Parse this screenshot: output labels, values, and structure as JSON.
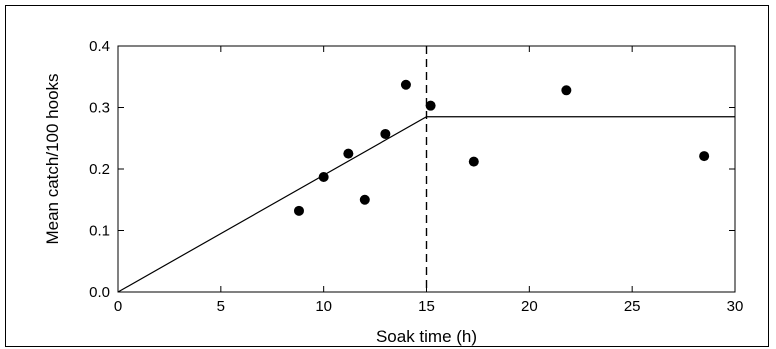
{
  "chart_data": {
    "type": "scatter",
    "title": "",
    "xlabel": "Soak time (h)",
    "ylabel": "Mean catch/100 hooks",
    "xlim": [
      0,
      30
    ],
    "ylim": [
      0,
      0.4
    ],
    "x_ticks": [
      0,
      5,
      10,
      15,
      20,
      25,
      30
    ],
    "y_ticks": [
      0.0,
      0.1,
      0.2,
      0.3,
      0.4
    ],
    "x_tick_labels": [
      "0",
      "5",
      "10",
      "15",
      "20",
      "25",
      "30"
    ],
    "y_tick_labels": [
      "0.0",
      "0.1",
      "0.2",
      "0.3",
      "0.4"
    ],
    "grid": false,
    "series": [
      {
        "points": [
          {
            "x": 8.8,
            "y": 0.132
          },
          {
            "x": 10.0,
            "y": 0.187
          },
          {
            "x": 11.2,
            "y": 0.225
          },
          {
            "x": 12.0,
            "y": 0.15
          },
          {
            "x": 13.0,
            "y": 0.257
          },
          {
            "x": 14.0,
            "y": 0.337
          },
          {
            "x": 15.2,
            "y": 0.303
          },
          {
            "x": 17.3,
            "y": 0.212
          },
          {
            "x": 21.8,
            "y": 0.328
          },
          {
            "x": 28.5,
            "y": 0.221
          }
        ],
        "color": "#000000"
      }
    ],
    "fitted_line": [
      {
        "x": 0,
        "y": 0.0
      },
      {
        "x": 15,
        "y": 0.285
      },
      {
        "x": 30,
        "y": 0.285
      }
    ],
    "reference_line": {
      "x": 15,
      "style": "dashed"
    }
  }
}
